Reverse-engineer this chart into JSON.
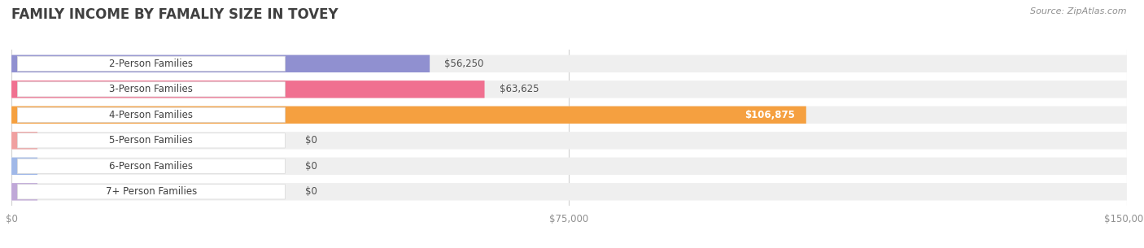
{
  "title": "FAMILY INCOME BY FAMALIY SIZE IN TOVEY",
  "source": "Source: ZipAtlas.com",
  "categories": [
    "2-Person Families",
    "3-Person Families",
    "4-Person Families",
    "5-Person Families",
    "6-Person Families",
    "7+ Person Families"
  ],
  "values": [
    56250,
    63625,
    106875,
    0,
    0,
    0
  ],
  "bar_colors": [
    "#9090d0",
    "#f07090",
    "#f5a040",
    "#f0a0a0",
    "#a0b8e8",
    "#c0a8d8"
  ],
  "bar_bg_color": "#efefef",
  "value_labels": [
    "$56,250",
    "$63,625",
    "$106,875",
    "$0",
    "$0",
    "$0"
  ],
  "xlim": [
    0,
    150000
  ],
  "xticks": [
    0,
    75000,
    150000
  ],
  "xticklabels": [
    "$0",
    "$75,000",
    "$150,000"
  ],
  "title_fontsize": 12,
  "label_fontsize": 8.5,
  "tick_fontsize": 8.5,
  "source_fontsize": 8,
  "background_color": "#ffffff",
  "title_color": "#404040",
  "label_color": "#404040",
  "tick_color": "#909090",
  "source_color": "#909090",
  "value_label_color_inside": "#ffffff",
  "value_label_color_outside": "#505050",
  "inside_threshold": 82500
}
